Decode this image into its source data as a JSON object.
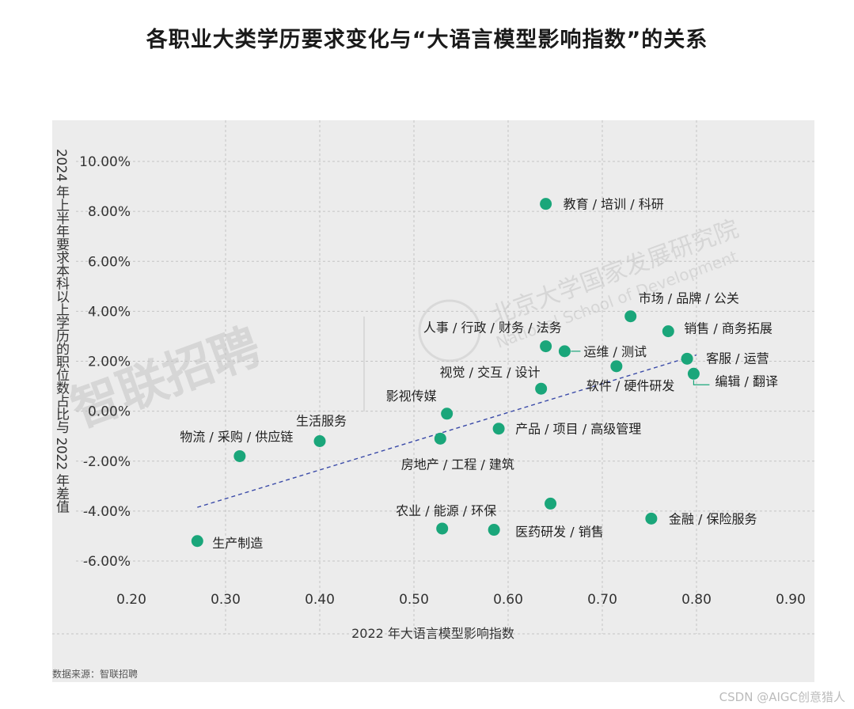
{
  "title": "各职业大类学历要求变化与“大语言模型影响指数”的关系",
  "source": "数据来源：智联招聘",
  "footer": "CSDN @AIGC创意猎人",
  "watermark": {
    "brand": "智联招聘",
    "institute_cn": "北京大学国家发展研究院",
    "institute_en": "National School of Development"
  },
  "chart_data": {
    "type": "scatter",
    "xlabel": "2022 年大语言模型影响指数",
    "ylabel": "2024 年上半年要求本科以上学历的职位数占比与 2022 年差值",
    "xlim": [
      0.2,
      0.9
    ],
    "ylim": [
      -7,
      11
    ],
    "x_ticks": [
      0.2,
      0.3,
      0.4,
      0.5,
      0.6,
      0.7,
      0.8,
      0.9
    ],
    "x_tick_labels": [
      "0.20",
      "0.30",
      "0.40",
      "0.50",
      "0.60",
      "0.70",
      "0.80",
      "0.90"
    ],
    "y_ticks": [
      -6,
      -4,
      -2,
      0,
      2,
      4,
      6,
      8,
      10
    ],
    "y_tick_labels": [
      "-6.00%",
      "-4.00%",
      "-2.00%",
      "0.00%",
      "2.00%",
      "4.00%",
      "6.00%",
      "8.00%",
      "10.00%"
    ],
    "grid": true,
    "point_color": "#1aa67a",
    "trend_color": "#3a4aa8",
    "trendline": {
      "x": [
        0.27,
        0.8
      ],
      "y": [
        -3.85,
        2.25
      ]
    },
    "points": [
      {
        "label": "教育 / 培训 / 科研",
        "x": 0.64,
        "y": 8.3
      },
      {
        "label": "市场 / 品牌 / 公关",
        "x": 0.73,
        "y": 3.8
      },
      {
        "label": "销售 / 商务拓展",
        "x": 0.77,
        "y": 3.2
      },
      {
        "label": "人事 / 行政 / 财务 / 法务",
        "x": 0.64,
        "y": 2.6
      },
      {
        "label": "运维 / 测试",
        "x": 0.66,
        "y": 2.4
      },
      {
        "label": "客服 / 运营",
        "x": 0.79,
        "y": 2.1
      },
      {
        "label": "软件 / 硬件研发",
        "x": 0.715,
        "y": 1.8
      },
      {
        "label": "编辑 / 翻译",
        "x": 0.797,
        "y": 1.5
      },
      {
        "label": "视觉 / 交互 / 设计",
        "x": 0.635,
        "y": 0.9
      },
      {
        "label": "影视传媒",
        "x": 0.535,
        "y": -0.1
      },
      {
        "label": "产品 / 项目 / 高级管理",
        "x": 0.59,
        "y": -0.7
      },
      {
        "label": "房地产 / 工程 / 建筑",
        "x": 0.528,
        "y": -1.1
      },
      {
        "label": "生活服务",
        "x": 0.4,
        "y": -1.2
      },
      {
        "label": "物流 / 采购 / 供应链",
        "x": 0.315,
        "y": -1.8
      },
      {
        "label": "",
        "x": 0.645,
        "y": -3.7
      },
      {
        "label": "金融 / 保险服务",
        "x": 0.752,
        "y": -4.3
      },
      {
        "label": "农业 / 能源 / 环保",
        "x": 0.53,
        "y": -4.7
      },
      {
        "label": "医药研发 / 销售",
        "x": 0.585,
        "y": -4.75
      },
      {
        "label": "生产制造",
        "x": 0.27,
        "y": -5.2
      }
    ]
  }
}
